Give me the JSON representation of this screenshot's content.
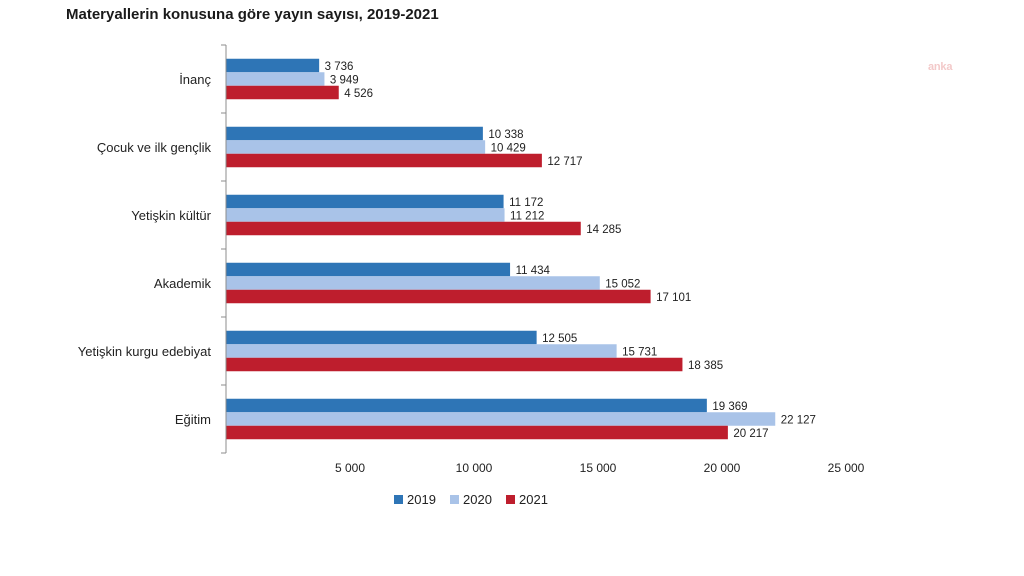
{
  "chart_data": {
    "type": "bar",
    "orientation": "horizontal",
    "title": "Materyallerin konusuna göre yayın sayısı, 2019-2021",
    "categories": [
      "İnanç",
      "Çocuk ve ilk gençlik",
      "Yetişkin kültür",
      "Akademik",
      "Yetişkin kurgu edebiyat",
      "Eğitim"
    ],
    "series": [
      {
        "name": "2019",
        "color": "#2e75b6",
        "values": [
          3736,
          10338,
          11172,
          11434,
          12505,
          19369
        ],
        "labels": [
          "3 736",
          "10 338",
          "11 172",
          "11 434",
          "12 505",
          "19 369"
        ]
      },
      {
        "name": "2020",
        "color": "#a9c3e8",
        "values": [
          3949,
          10429,
          11212,
          15052,
          15731,
          22127
        ],
        "labels": [
          "3 949",
          "10 429",
          "11 212",
          "15 052",
          "15 731",
          "22 127"
        ]
      },
      {
        "name": "2021",
        "color": "#be1e2d",
        "values": [
          4526,
          12717,
          14285,
          17101,
          18385,
          20217
        ],
        "labels": [
          "4 526",
          "12 717",
          "14 285",
          "17 101",
          "18 385",
          "20 217"
        ]
      }
    ],
    "xlim": [
      0,
      25000
    ],
    "xticks": [
      5000,
      10000,
      15000,
      20000,
      25000
    ],
    "xtick_labels": [
      "5 000",
      "10 000",
      "15 000",
      "20 000",
      "25 000"
    ],
    "xlabel": "",
    "ylabel": "",
    "grid": false,
    "legend_position": "bottom"
  },
  "watermark": "anka"
}
